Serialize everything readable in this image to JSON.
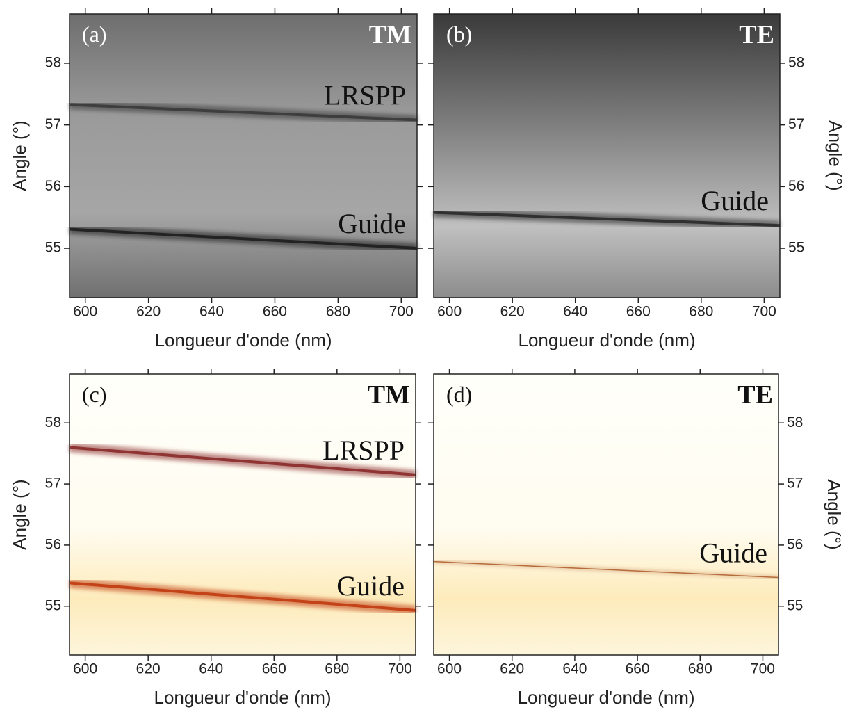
{
  "chart_data": [
    {
      "type": "heatmap",
      "panel_label": "(a)",
      "polarization": "TM",
      "colormap": "gray",
      "xlabel": "Longueur d'onde (nm)",
      "ylabel": "Angle (°)",
      "yaxis_side": "left",
      "xlim": [
        595,
        705
      ],
      "ylim": [
        54.2,
        58.8
      ],
      "xticks": [
        600,
        620,
        640,
        660,
        680,
        700
      ],
      "yticks": [
        55,
        56,
        57,
        58
      ],
      "x": [
        595,
        705
      ],
      "series": [
        {
          "name": "LRSPP",
          "color": "#3a3a3a",
          "values": [
            57.33,
            57.08
          ]
        },
        {
          "name": "Guide",
          "color": "#1e1e1e",
          "values": [
            55.31,
            55.0
          ]
        }
      ]
    },
    {
      "type": "heatmap",
      "panel_label": "(b)",
      "polarization": "TE",
      "colormap": "gray",
      "xlabel": "Longueur d'onde (nm)",
      "ylabel": "Angle (°)",
      "yaxis_side": "right",
      "xlim": [
        595,
        705
      ],
      "ylim": [
        54.2,
        58.8
      ],
      "xticks": [
        600,
        620,
        640,
        660,
        680,
        700
      ],
      "yticks": [
        55,
        56,
        57,
        58
      ],
      "x": [
        595,
        705
      ],
      "series": [
        {
          "name": "Guide",
          "color": "#2a2a2a",
          "values": [
            55.58,
            55.37
          ]
        }
      ]
    },
    {
      "type": "heatmap",
      "panel_label": "(c)",
      "polarization": "TM",
      "colormap": "inferno",
      "xlabel": "Longueur d'onde (nm)",
      "ylabel": "Angle (°)",
      "yaxis_side": "left",
      "xlim": [
        595,
        705
      ],
      "ylim": [
        54.2,
        58.8
      ],
      "xticks": [
        600,
        620,
        640,
        660,
        680,
        700
      ],
      "yticks": [
        55,
        56,
        57,
        58
      ],
      "x": [
        595,
        705
      ],
      "series": [
        {
          "name": "LRSPP",
          "color": "#8a2a2a",
          "values": [
            57.6,
            57.15
          ]
        },
        {
          "name": "Guide",
          "color": "#c03a10",
          "values": [
            55.38,
            54.93
          ]
        }
      ]
    },
    {
      "type": "heatmap",
      "panel_label": "(d)",
      "polarization": "TE",
      "colormap": "inferno",
      "xlabel": "Longueur d'onde (nm)",
      "ylabel": "Angle (°)",
      "yaxis_side": "right",
      "xlim": [
        595,
        705
      ],
      "ylim": [
        54.2,
        58.8
      ],
      "xticks": [
        600,
        620,
        640,
        660,
        680,
        700
      ],
      "yticks": [
        55,
        56,
        57,
        58
      ],
      "x": [
        595,
        705
      ],
      "series": [
        {
          "name": "Guide",
          "color": "#b06030",
          "values": [
            55.73,
            55.47
          ]
        }
      ]
    }
  ]
}
